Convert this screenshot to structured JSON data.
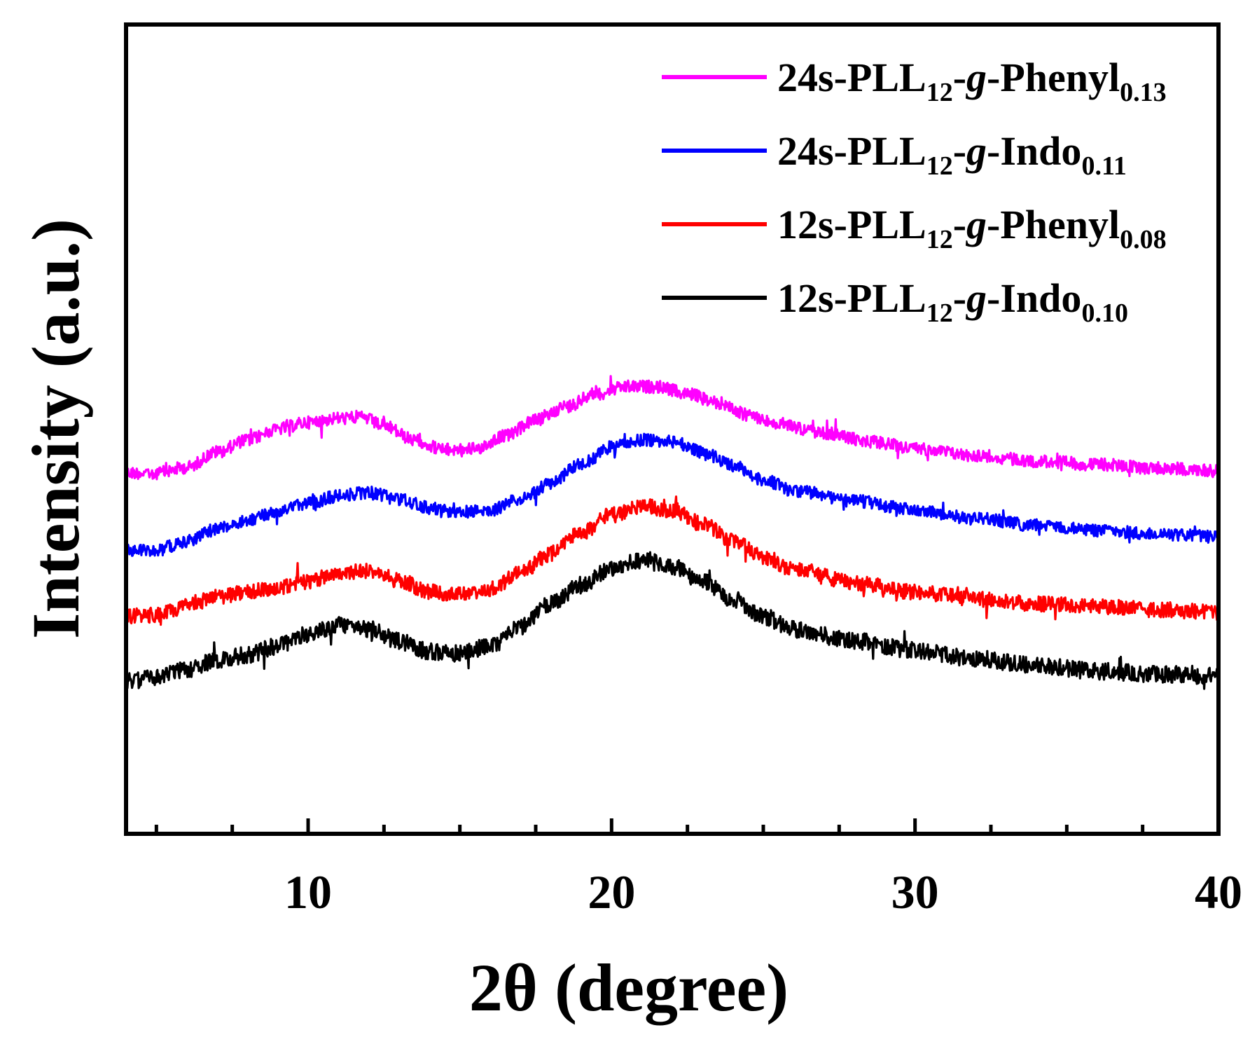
{
  "chart_data": {
    "type": "line",
    "xlabel": "2θ (degree)",
    "ylabel": "Intensity (a.u.)",
    "xlim": [
      4,
      40
    ],
    "x_ticks": [
      "10",
      "20",
      "30",
      "40"
    ],
    "y_ticks_shown": false,
    "legend_position": "top-right",
    "series": [
      {
        "name": "24s-PLL12-g-Phenyl0.13",
        "legend": {
          "base": "24s-PLL",
          "sub1": "12",
          "dash1": "-",
          "ital": "g",
          "dash2": "-",
          "group": "Phenyl",
          "sub2": "0.13"
        },
        "color": "#ff00ff",
        "noise": 9,
        "points": [
          [
            4.0,
            675
          ],
          [
            5.0,
            675
          ],
          [
            6.0,
            667
          ],
          [
            7.0,
            645
          ],
          [
            8.0,
            628
          ],
          [
            9.0,
            612
          ],
          [
            10.0,
            603
          ],
          [
            11.0,
            597
          ],
          [
            11.8,
            596
          ],
          [
            12.5,
            608
          ],
          [
            13.5,
            628
          ],
          [
            14.5,
            642
          ],
          [
            15.5,
            640
          ],
          [
            16.5,
            622
          ],
          [
            17.5,
            600
          ],
          [
            18.5,
            580
          ],
          [
            19.5,
            562
          ],
          [
            20.5,
            552
          ],
          [
            21.5,
            552
          ],
          [
            22.5,
            562
          ],
          [
            23.5,
            575
          ],
          [
            24.5,
            592
          ],
          [
            25.5,
            605
          ],
          [
            27.0,
            618
          ],
          [
            28.5,
            630
          ],
          [
            30.0,
            640
          ],
          [
            32.0,
            650
          ],
          [
            34.0,
            658
          ],
          [
            36.0,
            663
          ],
          [
            38.0,
            668
          ],
          [
            40.0,
            672
          ]
        ]
      },
      {
        "name": "24s-PLL12-g-Indo0.11",
        "legend": {
          "base": "24s-PLL",
          "sub1": "12",
          "dash1": "-",
          "ital": "g",
          "dash2": "-",
          "group": "Indo",
          "sub2": "0.11"
        },
        "color": "#0000ff",
        "noise": 9,
        "points": [
          [
            4.0,
            785
          ],
          [
            5.0,
            785
          ],
          [
            6.0,
            772
          ],
          [
            7.0,
            755
          ],
          [
            8.0,
            742
          ],
          [
            9.0,
            730
          ],
          [
            10.0,
            718
          ],
          [
            11.0,
            708
          ],
          [
            12.0,
            703
          ],
          [
            13.0,
            712
          ],
          [
            14.0,
            725
          ],
          [
            15.0,
            732
          ],
          [
            16.0,
            728
          ],
          [
            17.0,
            712
          ],
          [
            18.0,
            690
          ],
          [
            19.0,
            662
          ],
          [
            20.0,
            638
          ],
          [
            21.0,
            628
          ],
          [
            22.0,
            630
          ],
          [
            23.0,
            645
          ],
          [
            24.0,
            665
          ],
          [
            25.0,
            685
          ],
          [
            26.0,
            700
          ],
          [
            28.0,
            715
          ],
          [
            30.0,
            728
          ],
          [
            32.0,
            740
          ],
          [
            34.0,
            750
          ],
          [
            36.0,
            757
          ],
          [
            38.0,
            762
          ],
          [
            40.0,
            766
          ]
        ]
      },
      {
        "name": "12s-PLL12-g-Phenyl0.08",
        "legend": {
          "base": "12s-PLL",
          "sub1": "12",
          "dash1": "-",
          "ital": "g",
          "dash2": "-",
          "group": "Phenyl",
          "sub2": "0.08"
        },
        "color": "#ff0000",
        "noise": 11,
        "points": [
          [
            4.0,
            880
          ],
          [
            5.0,
            878
          ],
          [
            6.0,
            865
          ],
          [
            7.0,
            852
          ],
          [
            8.0,
            845
          ],
          [
            9.0,
            838
          ],
          [
            10.0,
            830
          ],
          [
            11.0,
            818
          ],
          [
            12.0,
            815
          ],
          [
            13.0,
            828
          ],
          [
            14.0,
            845
          ],
          [
            15.0,
            848
          ],
          [
            16.0,
            840
          ],
          [
            17.0,
            818
          ],
          [
            18.0,
            790
          ],
          [
            19.0,
            760
          ],
          [
            20.0,
            735
          ],
          [
            21.0,
            722
          ],
          [
            22.0,
            728
          ],
          [
            23.0,
            748
          ],
          [
            24.0,
            772
          ],
          [
            25.0,
            795
          ],
          [
            26.0,
            812
          ],
          [
            28.0,
            832
          ],
          [
            30.0,
            845
          ],
          [
            32.0,
            855
          ],
          [
            34.0,
            862
          ],
          [
            36.0,
            866
          ],
          [
            38.0,
            870
          ],
          [
            40.0,
            874
          ]
        ]
      },
      {
        "name": "12s-PLL12-g-Indo0.10",
        "legend": {
          "base": "12s-PLL",
          "sub1": "12",
          "dash1": "-",
          "ital": "g",
          "dash2": "-",
          "group": "Indo",
          "sub2": "0.10"
        },
        "color": "#000000",
        "noise": 12,
        "points": [
          [
            4.0,
            972
          ],
          [
            5.0,
            968
          ],
          [
            6.0,
            955
          ],
          [
            7.0,
            943
          ],
          [
            8.0,
            935
          ],
          [
            9.0,
            922
          ],
          [
            10.0,
            905
          ],
          [
            11.0,
            892
          ],
          [
            12.0,
            898
          ],
          [
            13.0,
            915
          ],
          [
            14.0,
            930
          ],
          [
            15.0,
            933
          ],
          [
            16.0,
            922
          ],
          [
            17.0,
            895
          ],
          [
            18.0,
            862
          ],
          [
            19.0,
            835
          ],
          [
            20.0,
            812
          ],
          [
            21.0,
            800
          ],
          [
            22.0,
            808
          ],
          [
            23.0,
            830
          ],
          [
            24.0,
            855
          ],
          [
            25.0,
            880
          ],
          [
            26.0,
            898
          ],
          [
            28.0,
            915
          ],
          [
            30.0,
            928
          ],
          [
            32.0,
            940
          ],
          [
            34.0,
            950
          ],
          [
            36.0,
            958
          ],
          [
            38.0,
            962
          ],
          [
            40.0,
            965
          ]
        ]
      }
    ]
  }
}
